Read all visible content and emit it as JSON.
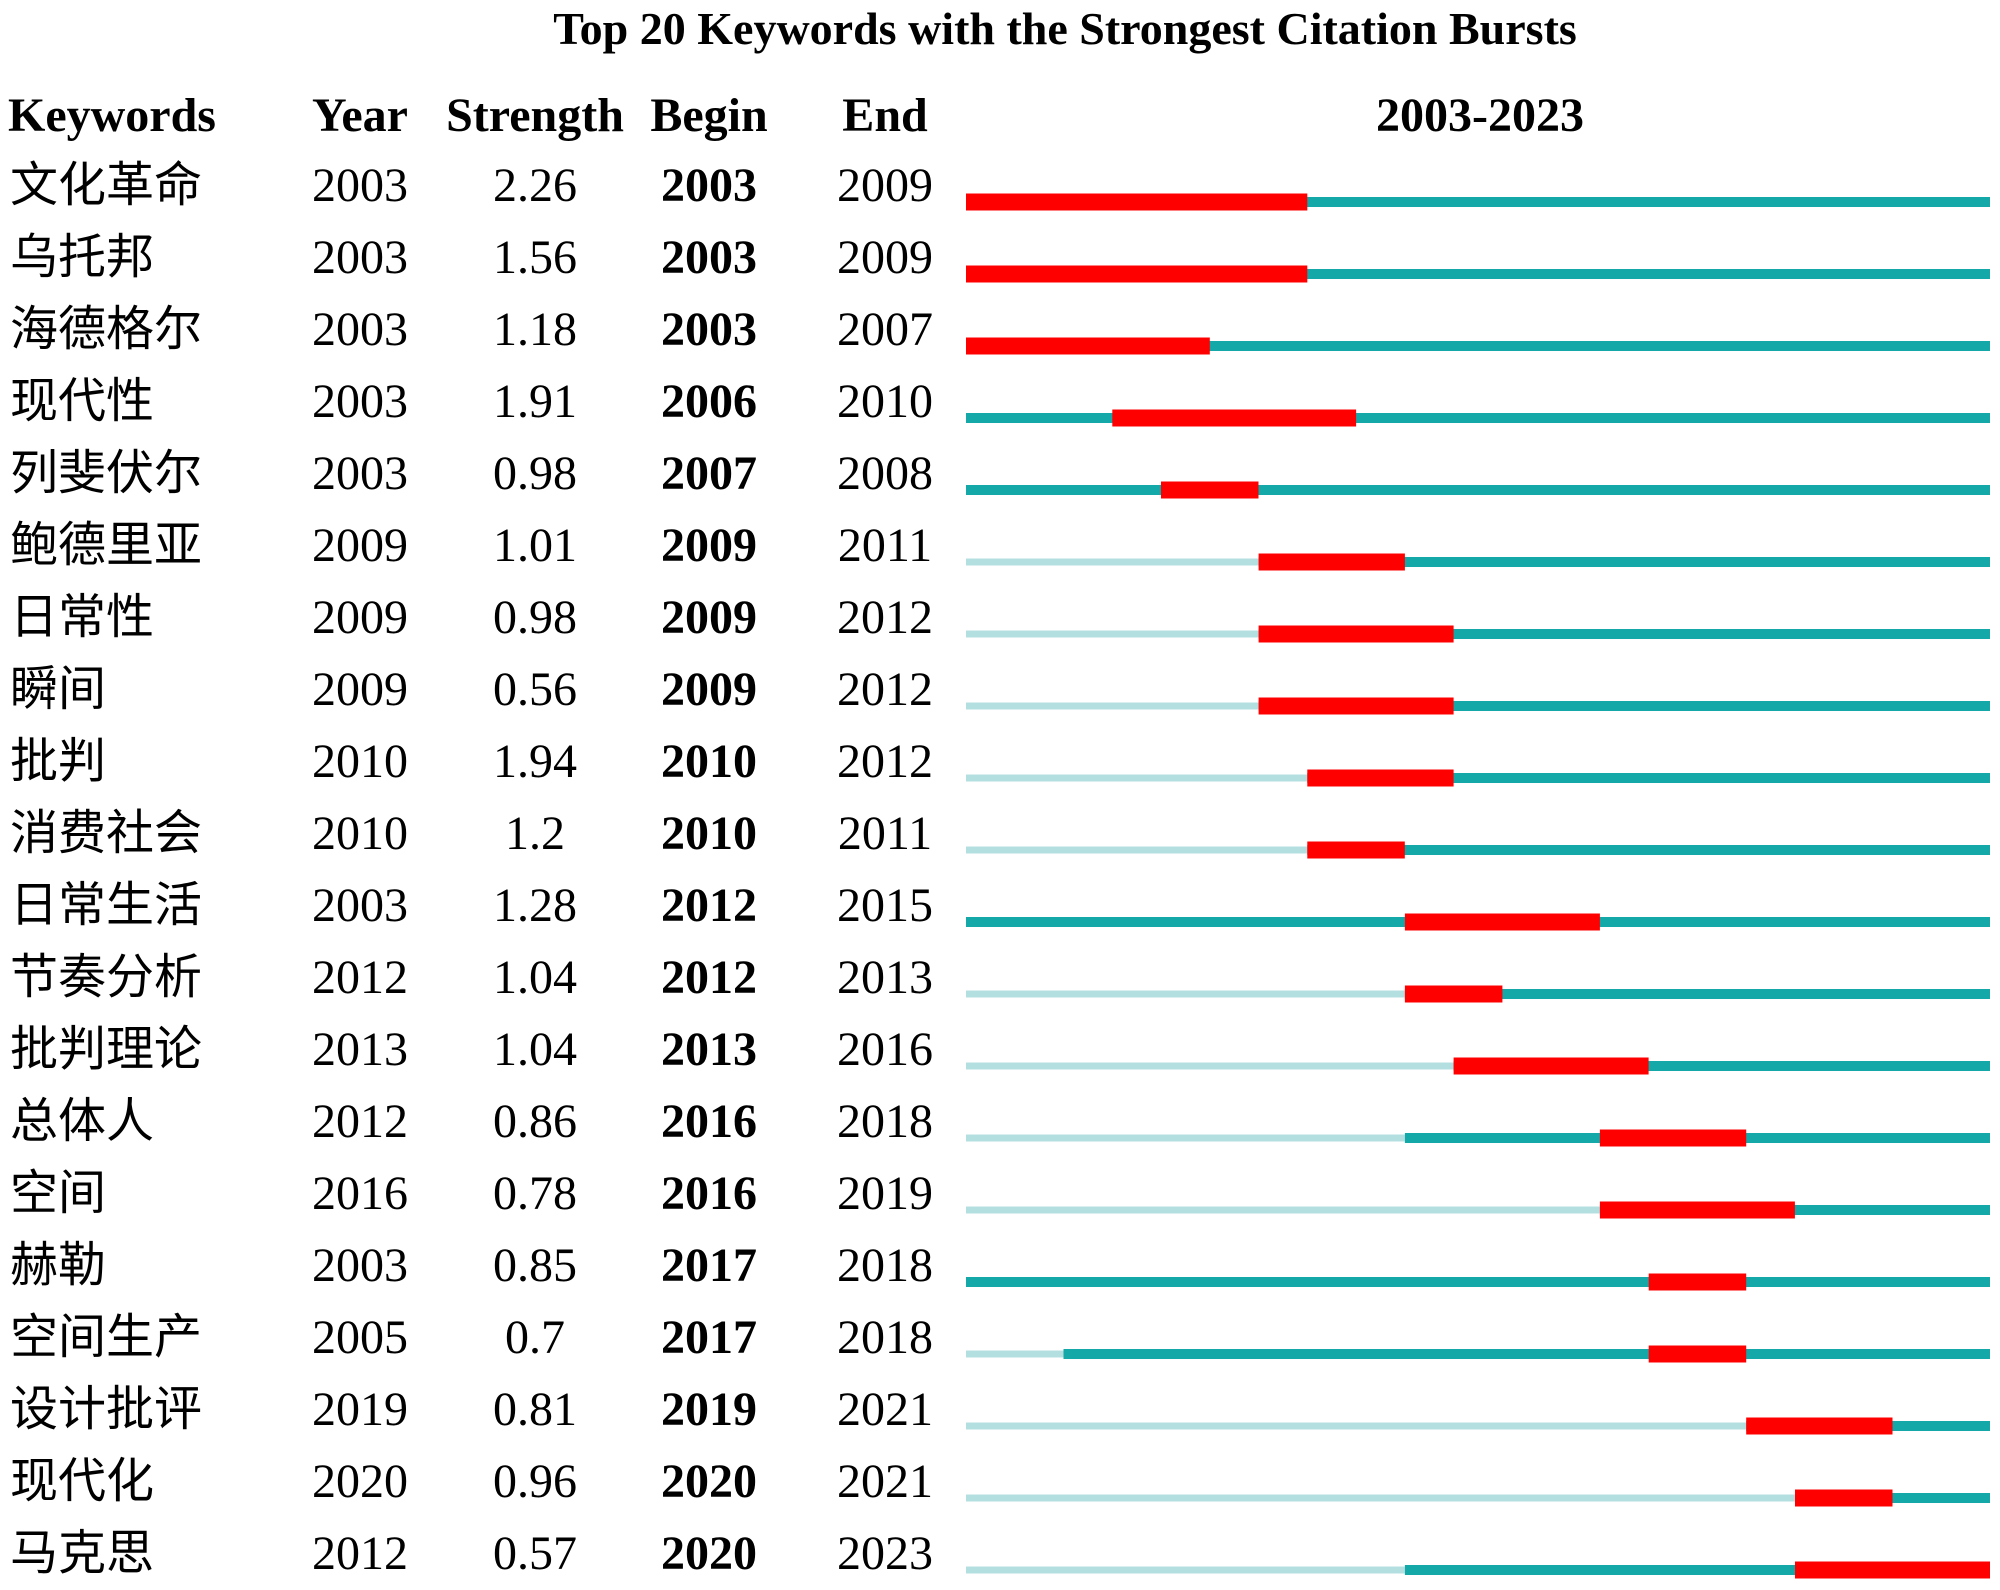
{
  "chart_data": {
    "type": "table",
    "title": "Top 20 Keywords with the Strongest Citation Bursts",
    "columns": [
      "Keywords",
      "Year",
      "Strength",
      "Begin",
      "End"
    ],
    "range_label": "2003-2023",
    "range_start": 2003,
    "range_end": 2023,
    "colors": {
      "burst": "#ff0000",
      "active": "#14a8a8",
      "inactive": "#b4dfe0"
    },
    "rows": [
      {
        "keyword": "文化革命",
        "year": "2003",
        "strength": "2.26",
        "begin": "2003",
        "end": "2009"
      },
      {
        "keyword": "乌托邦",
        "year": "2003",
        "strength": "1.56",
        "begin": "2003",
        "end": "2009"
      },
      {
        "keyword": "海德格尔",
        "year": "2003",
        "strength": "1.18",
        "begin": "2003",
        "end": "2007"
      },
      {
        "keyword": "现代性",
        "year": "2003",
        "strength": "1.91",
        "begin": "2006",
        "end": "2010"
      },
      {
        "keyword": "列斐伏尔",
        "year": "2003",
        "strength": "0.98",
        "begin": "2007",
        "end": "2008"
      },
      {
        "keyword": "鲍德里亚",
        "year": "2009",
        "strength": "1.01",
        "begin": "2009",
        "end": "2011"
      },
      {
        "keyword": "日常性",
        "year": "2009",
        "strength": "0.98",
        "begin": "2009",
        "end": "2012"
      },
      {
        "keyword": "瞬间",
        "year": "2009",
        "strength": "0.56",
        "begin": "2009",
        "end": "2012"
      },
      {
        "keyword": "批判",
        "year": "2010",
        "strength": "1.94",
        "begin": "2010",
        "end": "2012"
      },
      {
        "keyword": "消费社会",
        "year": "2010",
        "strength": "1.2",
        "begin": "2010",
        "end": "2011"
      },
      {
        "keyword": "日常生活",
        "year": "2003",
        "strength": "1.28",
        "begin": "2012",
        "end": "2015"
      },
      {
        "keyword": "节奏分析",
        "year": "2012",
        "strength": "1.04",
        "begin": "2012",
        "end": "2013"
      },
      {
        "keyword": "批判理论",
        "year": "2013",
        "strength": "1.04",
        "begin": "2013",
        "end": "2016"
      },
      {
        "keyword": "总体人",
        "year": "2012",
        "strength": "0.86",
        "begin": "2016",
        "end": "2018"
      },
      {
        "keyword": "空间",
        "year": "2016",
        "strength": "0.78",
        "begin": "2016",
        "end": "2019"
      },
      {
        "keyword": "赫勒",
        "year": "2003",
        "strength": "0.85",
        "begin": "2017",
        "end": "2018"
      },
      {
        "keyword": "空间生产",
        "year": "2005",
        "strength": "0.7",
        "begin": "2017",
        "end": "2018"
      },
      {
        "keyword": "设计批评",
        "year": "2019",
        "strength": "0.81",
        "begin": "2019",
        "end": "2021"
      },
      {
        "keyword": "现代化",
        "year": "2020",
        "strength": "0.96",
        "begin": "2020",
        "end": "2021"
      },
      {
        "keyword": "马克思",
        "year": "2012",
        "strength": "0.57",
        "begin": "2020",
        "end": "2023"
      }
    ]
  }
}
